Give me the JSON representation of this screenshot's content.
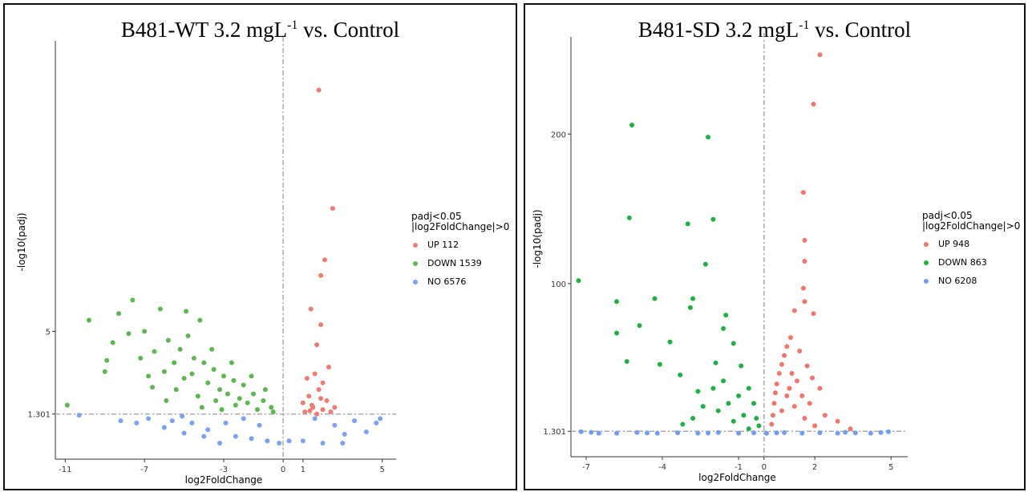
{
  "colors": {
    "up": "#F07B72",
    "down": "#5DB651",
    "no": "#7BA0F4",
    "up2": "#F0766C",
    "down2": "#1FB042",
    "no2": "#719CF0"
  },
  "chart_data": [
    {
      "type": "scatter",
      "title_main": "B481-WT 3.2 mgL",
      "title_sup": "-1",
      "title_rest": " vs. Control",
      "xlabel": "log2FoldChange",
      "ylabel": "-log10(padj)",
      "x_ticks": [
        "-11",
        "-7",
        "-3",
        "0",
        "1",
        "5"
      ],
      "x_tick_values": [
        -11,
        -7,
        -3,
        0,
        1,
        5
      ],
      "y_ticks": [
        "1.301",
        "5"
      ],
      "y_tick_values": [
        1.301,
        5
      ],
      "xlim": [
        -11.5,
        5.5
      ],
      "ylim": [
        0,
        18
      ],
      "threshold_y": 1.301,
      "threshold_x": 0,
      "grid": false,
      "legend_title": [
        "padj<0.05",
        "|log2FoldChange|>0"
      ],
      "legend": [
        {
          "key": "up",
          "label": "UP 112"
        },
        {
          "key": "down",
          "label": "DOWN 1539"
        },
        {
          "key": "no",
          "label": "NO 6576"
        }
      ],
      "series": [
        {
          "key": "up",
          "name": "UP",
          "points": [
            [
              1.8,
              15.8
            ],
            [
              2.5,
              10.5
            ],
            [
              2.1,
              8.2
            ],
            [
              1.9,
              7.5
            ],
            [
              1.4,
              6.0
            ],
            [
              1.9,
              5.3
            ],
            [
              1.7,
              4.4
            ],
            [
              2.3,
              3.4
            ],
            [
              1.6,
              3.1
            ],
            [
              2.0,
              2.7
            ],
            [
              1.2,
              2.9
            ],
            [
              1.8,
              2.4
            ],
            [
              2.6,
              1.6
            ],
            [
              1.3,
              2.1
            ],
            [
              2.2,
              1.9
            ],
            [
              1.0,
              1.8
            ],
            [
              1.5,
              1.6
            ],
            [
              2.0,
              1.5
            ],
            [
              1.1,
              1.4
            ],
            [
              1.7,
              1.3
            ],
            [
              2.4,
              1.4
            ],
            [
              1.35,
              1.45
            ],
            [
              1.9,
              2.0
            ],
            [
              1.45,
              1.7
            ]
          ]
        },
        {
          "key": "down",
          "name": "DOWN",
          "points": [
            [
              -10.9,
              1.7
            ],
            [
              -9.8,
              5.5
            ],
            [
              -7.6,
              6.4
            ],
            [
              -8.3,
              5.8
            ],
            [
              -6.2,
              6.0
            ],
            [
              -4.9,
              5.9
            ],
            [
              -4.2,
              5.5
            ],
            [
              -8.9,
              3.7
            ],
            [
              -9.0,
              3.2
            ],
            [
              -8.6,
              4.5
            ],
            [
              -7.8,
              4.9
            ],
            [
              -7.0,
              5.0
            ],
            [
              -6.5,
              4.1
            ],
            [
              -5.8,
              4.6
            ],
            [
              -5.2,
              4.2
            ],
            [
              -4.5,
              3.8
            ],
            [
              -4.0,
              3.6
            ],
            [
              -3.5,
              3.3
            ],
            [
              -3.0,
              3.0
            ],
            [
              -2.5,
              2.8
            ],
            [
              -2.0,
              2.6
            ],
            [
              -1.5,
              2.2
            ],
            [
              -1.0,
              1.9
            ],
            [
              -0.6,
              1.6
            ],
            [
              -6.0,
              3.2
            ],
            [
              -5.5,
              3.6
            ],
            [
              -5.0,
              2.9
            ],
            [
              -4.6,
              3.1
            ],
            [
              -3.8,
              2.7
            ],
            [
              -3.2,
              2.4
            ],
            [
              -2.8,
              2.2
            ],
            [
              -2.2,
              2.0
            ],
            [
              -1.8,
              1.8
            ],
            [
              -7.2,
              3.8
            ],
            [
              -6.8,
              3.0
            ],
            [
              -4.8,
              4.8
            ],
            [
              -3.6,
              4.2
            ],
            [
              -2.6,
              3.6
            ],
            [
              -1.6,
              3.0
            ],
            [
              -0.9,
              2.4
            ],
            [
              -5.4,
              2.4
            ],
            [
              -4.3,
              2.1
            ],
            [
              -3.4,
              1.9
            ],
            [
              -2.4,
              1.7
            ],
            [
              -1.3,
              1.5
            ],
            [
              -0.5,
              1.4
            ],
            [
              -6.6,
              2.5
            ],
            [
              -5.9,
              1.9
            ],
            [
              -4.1,
              1.6
            ],
            [
              -3.1,
              1.5
            ]
          ]
        },
        {
          "key": "no",
          "name": "NO",
          "points": [
            [
              -10.3,
              1.25
            ],
            [
              -8.2,
              1.0
            ],
            [
              -5.1,
              1.2
            ],
            [
              -6.0,
              0.7
            ],
            [
              -5.0,
              0.45
            ],
            [
              -4.0,
              0.3
            ],
            [
              -3.2,
              0.0
            ],
            [
              -2.4,
              0.3
            ],
            [
              -1.6,
              0.2
            ],
            [
              -0.8,
              0.1
            ],
            [
              -0.2,
              0.0
            ],
            [
              0.3,
              0.1
            ],
            [
              1.0,
              0.1
            ],
            [
              2.0,
              0.0
            ],
            [
              3.0,
              0.0
            ],
            [
              4.2,
              0.5
            ],
            [
              4.7,
              0.9
            ],
            [
              4.9,
              1.1
            ],
            [
              3.6,
              1.0
            ],
            [
              3.1,
              0.4
            ],
            [
              2.6,
              0.8
            ],
            [
              1.6,
              1.1
            ],
            [
              -4.6,
              0.9
            ],
            [
              -3.8,
              0.6
            ],
            [
              -2.9,
              0.9
            ],
            [
              -2.0,
              1.1
            ],
            [
              -1.2,
              0.8
            ],
            [
              -6.8,
              1.1
            ],
            [
              -7.4,
              0.9
            ],
            [
              -5.6,
              1.0
            ]
          ]
        }
      ]
    },
    {
      "type": "scatter",
      "title_main": "B481-SD 3.2 mgL",
      "title_sup": "-1",
      "title_rest": " vs. Control",
      "xlabel": "log2FoldChange",
      "ylabel": "-log10(padj)",
      "x_ticks": [
        "-7",
        "-4",
        "-1",
        "0",
        "2",
        "5"
      ],
      "x_tick_values": [
        -7,
        -4,
        -1,
        0,
        2,
        5
      ],
      "y_ticks": [
        "1.301",
        "100",
        "200"
      ],
      "y_tick_values": [
        1.301,
        100,
        200
      ],
      "xlim": [
        -7.6,
        5.5
      ],
      "ylim": [
        -5,
        265
      ],
      "threshold_y": 1.301,
      "threshold_x": 0,
      "grid": false,
      "legend_title": [
        "padj<0.05",
        "|log2FoldChange|>0"
      ],
      "legend": [
        {
          "key": "up2",
          "label": "UP 948"
        },
        {
          "key": "down2",
          "label": "DOWN 863"
        },
        {
          "key": "no2",
          "label": "NO 6208"
        }
      ],
      "series": [
        {
          "key": "up2",
          "name": "UP",
          "points": [
            [
              2.2,
              253
            ],
            [
              1.95,
              220
            ],
            [
              1.55,
              161
            ],
            [
              1.6,
              129
            ],
            [
              1.6,
              115
            ],
            [
              1.55,
              97
            ],
            [
              1.6,
              88
            ],
            [
              1.95,
              80
            ],
            [
              1.2,
              82
            ],
            [
              1.05,
              64
            ],
            [
              0.9,
              58
            ],
            [
              0.8,
              52
            ],
            [
              0.7,
              46
            ],
            [
              0.6,
              40
            ],
            [
              0.5,
              33
            ],
            [
              0.45,
              27
            ],
            [
              0.4,
              20
            ],
            [
              0.35,
              12
            ],
            [
              0.3,
              6
            ],
            [
              1.0,
              30
            ],
            [
              1.3,
              35
            ],
            [
              1.5,
              25
            ],
            [
              1.8,
              20
            ],
            [
              2.2,
              30
            ],
            [
              2.4,
              12
            ],
            [
              2.9,
              8
            ],
            [
              3.4,
              3
            ],
            [
              1.7,
              45
            ],
            [
              1.4,
              55
            ],
            [
              1.1,
              40
            ],
            [
              0.9,
              25
            ],
            [
              1.6,
              10
            ],
            [
              2.0,
              5
            ],
            [
              0.7,
              15
            ],
            [
              1.2,
              18
            ],
            [
              1.9,
              37
            ]
          ]
        },
        {
          "key": "down2",
          "name": "DOWN",
          "points": [
            [
              -5.2,
              206
            ],
            [
              -2.2,
              198
            ],
            [
              -5.3,
              144
            ],
            [
              -2.0,
              143
            ],
            [
              -3.0,
              140
            ],
            [
              -2.3,
              113
            ],
            [
              -7.3,
              102
            ],
            [
              -5.8,
              88
            ],
            [
              -4.3,
              90
            ],
            [
              -2.8,
              90
            ],
            [
              -2.9,
              84
            ],
            [
              -4.9,
              72
            ],
            [
              -5.8,
              67
            ],
            [
              -3.7,
              61
            ],
            [
              -1.5,
              79
            ],
            [
              -1.6,
              70
            ],
            [
              -4.1,
              46
            ],
            [
              -5.4,
              48
            ],
            [
              -3.3,
              39
            ],
            [
              -1.9,
              47
            ],
            [
              -1.2,
              60
            ],
            [
              -0.9,
              45
            ],
            [
              -0.6,
              30
            ],
            [
              -0.4,
              20
            ],
            [
              -0.3,
              10
            ],
            [
              -0.2,
              5
            ],
            [
              -1.0,
              25
            ],
            [
              -1.4,
              20
            ],
            [
              -1.8,
              15
            ],
            [
              -2.4,
              18
            ],
            [
              -2.8,
              10
            ],
            [
              -3.2,
              6
            ],
            [
              -0.8,
              12
            ],
            [
              -1.2,
              8
            ],
            [
              -0.6,
              3
            ],
            [
              -2.0,
              30
            ],
            [
              -1.6,
              35
            ],
            [
              -2.6,
              28
            ]
          ]
        },
        {
          "key": "no2",
          "name": "NO",
          "points": [
            [
              -7.2,
              1
            ],
            [
              -6.5,
              0
            ],
            [
              -5.8,
              0
            ],
            [
              -5.0,
              0.5
            ],
            [
              -4.2,
              0
            ],
            [
              -3.4,
              0.3
            ],
            [
              -2.6,
              0
            ],
            [
              -1.8,
              0.5
            ],
            [
              -1.0,
              0
            ],
            [
              -0.4,
              0.3
            ],
            [
              0.1,
              0
            ],
            [
              0.8,
              0.4
            ],
            [
              1.5,
              0
            ],
            [
              2.2,
              0.3
            ],
            [
              2.9,
              0
            ],
            [
              3.6,
              0.2
            ],
            [
              4.2,
              0
            ],
            [
              4.6,
              0.5
            ],
            [
              4.9,
              1
            ],
            [
              -6.8,
              0.6
            ],
            [
              -4.6,
              0.2
            ],
            [
              -2.2,
              0.1
            ],
            [
              0.5,
              0.2
            ],
            [
              3.2,
              0.6
            ]
          ]
        }
      ]
    }
  ]
}
